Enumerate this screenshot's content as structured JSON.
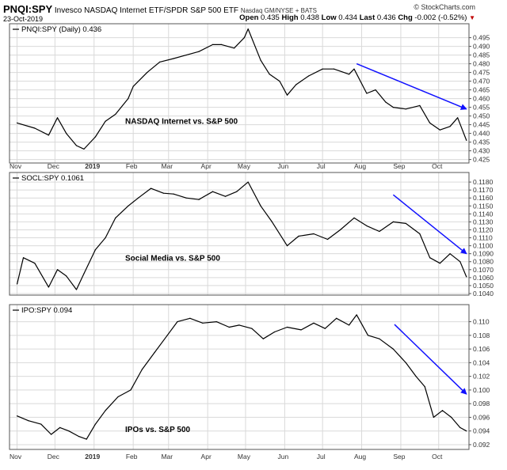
{
  "header": {
    "symbol": "PNQI:SPY",
    "name": "Invesco NASDAQ Internet ETF/SPDR S&P 500 ETF",
    "exchange": "Nasdaq GM/NYSE + BATS",
    "date": "23-Oct-2019",
    "credit": "© StockCharts.com",
    "open_label": "Open",
    "open": "0.435",
    "high_label": "High",
    "high": "0.438",
    "low_label": "Low",
    "low": "0.434",
    "last_label": "Last",
    "last": "0.436",
    "chg_label": "Chg",
    "chg": "-0.002 (-0.52%)",
    "chg_arrow": "▼"
  },
  "x_labels": [
    "Nov",
    "Dec",
    "2019",
    "Feb",
    "Mar",
    "Apr",
    "May",
    "Jun",
    "Jul",
    "Aug",
    "Sep",
    "Oct"
  ],
  "colors": {
    "line": "#000000",
    "arrow": "#1010ff",
    "grid": "#d9d9d9",
    "frame": "#555555"
  },
  "chart_data": [
    {
      "type": "line",
      "legend": "PNQI:SPY (Daily) 0.436",
      "annotation": "NASDAQ Internet vs. S&P 500",
      "ylim": [
        0.423,
        0.503
      ],
      "yticks": [
        "0.495",
        "0.490",
        "0.485",
        "0.480",
        "0.475",
        "0.470",
        "0.465",
        "0.460",
        "0.455",
        "0.450",
        "0.445",
        "0.440",
        "0.435",
        "0.430",
        "0.425"
      ],
      "x": [
        "2018-11-01",
        "2018-11-15",
        "2018-11-26",
        "2018-12-03",
        "2018-12-10",
        "2018-12-18",
        "2018-12-24",
        "2019-01-02",
        "2019-01-10",
        "2019-01-18",
        "2019-01-28",
        "2019-02-01",
        "2019-02-12",
        "2019-02-22",
        "2019-03-05",
        "2019-03-15",
        "2019-03-25",
        "2019-04-05",
        "2019-04-12",
        "2019-04-22",
        "2019-04-30",
        "2019-05-03",
        "2019-05-13",
        "2019-05-20",
        "2019-05-28",
        "2019-06-03",
        "2019-06-10",
        "2019-06-20",
        "2019-07-01",
        "2019-07-10",
        "2019-07-22",
        "2019-07-26",
        "2019-08-05",
        "2019-08-12",
        "2019-08-20",
        "2019-08-26",
        "2019-09-05",
        "2019-09-16",
        "2019-09-24",
        "2019-10-02",
        "2019-10-10",
        "2019-10-16",
        "2019-10-23"
      ],
      "values": [
        0.446,
        0.443,
        0.439,
        0.449,
        0.44,
        0.433,
        0.431,
        0.438,
        0.447,
        0.451,
        0.46,
        0.467,
        0.475,
        0.481,
        0.483,
        0.485,
        0.487,
        0.491,
        0.491,
        0.489,
        0.495,
        0.5,
        0.482,
        0.474,
        0.47,
        0.462,
        0.468,
        0.473,
        0.477,
        0.477,
        0.474,
        0.477,
        0.463,
        0.465,
        0.458,
        0.455,
        0.454,
        0.456,
        0.446,
        0.442,
        0.444,
        0.449,
        0.436
      ],
      "trend_arrow": {
        "from": [
          "2019-07-28",
          0.48
        ],
        "to": [
          "2019-10-23",
          0.454
        ]
      }
    },
    {
      "type": "line",
      "legend": "SOCL:SPY 0.1061",
      "annotation": "Social Media vs. S&P 500",
      "ylim": [
        0.1038,
        0.1192
      ],
      "yticks": [
        "0.1180",
        "0.1170",
        "0.1160",
        "0.1150",
        "0.1140",
        "0.1130",
        "0.1120",
        "0.1110",
        "0.1100",
        "0.1090",
        "0.1080",
        "0.1070",
        "0.1060",
        "0.1050",
        "0.1040"
      ],
      "x": [
        "2018-11-01",
        "2018-11-06",
        "2018-11-15",
        "2018-11-26",
        "2018-12-03",
        "2018-12-10",
        "2018-12-18",
        "2018-12-24",
        "2019-01-02",
        "2019-01-10",
        "2019-01-18",
        "2019-01-28",
        "2019-02-05",
        "2019-02-15",
        "2019-02-25",
        "2019-03-05",
        "2019-03-15",
        "2019-03-25",
        "2019-04-05",
        "2019-04-15",
        "2019-04-24",
        "2019-05-03",
        "2019-05-13",
        "2019-05-22",
        "2019-06-03",
        "2019-06-12",
        "2019-06-24",
        "2019-07-05",
        "2019-07-15",
        "2019-07-26",
        "2019-08-05",
        "2019-08-15",
        "2019-08-26",
        "2019-09-05",
        "2019-09-16",
        "2019-09-24",
        "2019-10-02",
        "2019-10-10",
        "2019-10-18",
        "2019-10-23"
      ],
      "values": [
        0.1052,
        0.1085,
        0.1078,
        0.1048,
        0.107,
        0.1062,
        0.1045,
        0.1065,
        0.1095,
        0.111,
        0.1135,
        0.115,
        0.116,
        0.1172,
        0.1166,
        0.1165,
        0.116,
        0.1158,
        0.1168,
        0.1162,
        0.1168,
        0.118,
        0.115,
        0.113,
        0.11,
        0.1112,
        0.1115,
        0.1108,
        0.112,
        0.1135,
        0.1125,
        0.1118,
        0.113,
        0.1128,
        0.1115,
        0.1085,
        0.1078,
        0.109,
        0.108,
        0.1061
      ],
      "trend_arrow": {
        "from": [
          "2019-08-26",
          0.1164
        ],
        "to": [
          "2019-10-23",
          0.109
        ]
      }
    },
    {
      "type": "line",
      "legend": "IPO:SPY 0.094",
      "annotation": "IPOs vs. S&P 500",
      "ylim": [
        0.0913,
        0.1125
      ],
      "yticks": [
        "0.110",
        "0.108",
        "0.106",
        "0.104",
        "0.102",
        "0.100",
        "0.098",
        "0.096",
        "0.094",
        "0.092"
      ],
      "x": [
        "2018-11-01",
        "2018-11-10",
        "2018-11-20",
        "2018-11-28",
        "2018-12-05",
        "2018-12-12",
        "2018-12-20",
        "2018-12-26",
        "2019-01-02",
        "2019-01-10",
        "2019-01-20",
        "2019-01-30",
        "2019-02-08",
        "2019-02-18",
        "2019-02-28",
        "2019-03-08",
        "2019-03-18",
        "2019-03-28",
        "2019-04-08",
        "2019-04-18",
        "2019-04-26",
        "2019-05-06",
        "2019-05-15",
        "2019-05-24",
        "2019-06-03",
        "2019-06-14",
        "2019-06-24",
        "2019-07-03",
        "2019-07-12",
        "2019-07-22",
        "2019-07-28",
        "2019-08-06",
        "2019-08-15",
        "2019-08-26",
        "2019-09-05",
        "2019-09-13",
        "2019-09-20",
        "2019-09-27",
        "2019-10-04",
        "2019-10-11",
        "2019-10-18",
        "2019-10-23"
      ],
      "values": [
        0.0962,
        0.0955,
        0.095,
        0.0935,
        0.0945,
        0.094,
        0.0932,
        0.0928,
        0.095,
        0.097,
        0.099,
        0.1,
        0.103,
        0.1055,
        0.108,
        0.11,
        0.1105,
        0.1098,
        0.11,
        0.1092,
        0.1095,
        0.109,
        0.1075,
        0.1085,
        0.1092,
        0.1088,
        0.1098,
        0.109,
        0.1105,
        0.1095,
        0.111,
        0.108,
        0.1075,
        0.106,
        0.104,
        0.102,
        0.1005,
        0.096,
        0.097,
        0.096,
        0.0945,
        0.094
      ],
      "trend_arrow": {
        "from": [
          "2019-08-27",
          0.1096
        ],
        "to": [
          "2019-10-23",
          0.0994
        ]
      }
    }
  ]
}
